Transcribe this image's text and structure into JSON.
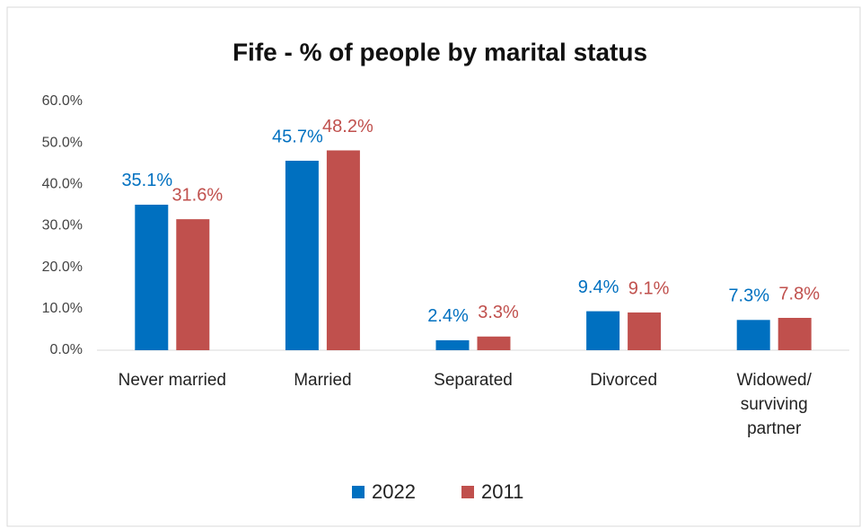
{
  "chart_data": {
    "type": "bar",
    "title": "Fife - % of people by marital status",
    "categories": [
      "Never married",
      "Married",
      "Separated",
      "Divorced",
      "Widowed/\nsurviving\npartner"
    ],
    "series": [
      {
        "name": "2022",
        "color": "#0070c0",
        "values": [
          35.1,
          45.7,
          2.4,
          9.4,
          7.3
        ],
        "value_labels": [
          "35.1%",
          "45.7%",
          "2.4%",
          "9.4%",
          "7.3%"
        ]
      },
      {
        "name": "2011",
        "color": "#c0504d",
        "values": [
          31.6,
          48.2,
          3.3,
          9.1,
          7.8
        ],
        "value_labels": [
          "31.6%",
          "48.2%",
          "3.3%",
          "9.1%",
          "7.8%"
        ]
      }
    ],
    "ylim": [
      0,
      60
    ],
    "yticks": [
      {
        "value": 0,
        "label": "0.0%"
      },
      {
        "value": 10,
        "label": "10.0%"
      },
      {
        "value": 20,
        "label": "20.0%"
      },
      {
        "value": 30,
        "label": "30.0%"
      },
      {
        "value": 40,
        "label": "40.0%"
      },
      {
        "value": 50,
        "label": "50.0%"
      },
      {
        "value": 60,
        "label": "60.0%"
      }
    ],
    "grid": false,
    "legend": "bottom"
  }
}
